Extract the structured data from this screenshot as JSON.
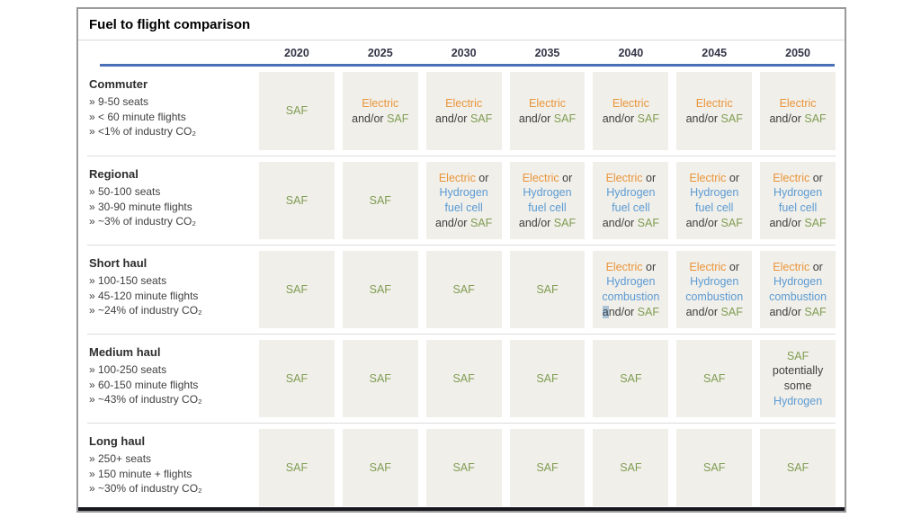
{
  "title": "Fuel to flight comparison",
  "columns": [
    "2020",
    "2025",
    "2030",
    "2035",
    "2040",
    "2045",
    "2050"
  ],
  "colors": {
    "saf": "#7f9d54",
    "electric": "#e9953b",
    "hydrogen": "#5b9bd5",
    "plain_text": "#3f3f3f",
    "cell_background": "#f1efe9",
    "header_underline": "#4a6fb9",
    "bottom_bar": "#17171f"
  },
  "rows": [
    {
      "id": "commuter",
      "category": "Commuter",
      "bullets": [
        "» 9-50 seats",
        "» < 60 minute flights",
        "» <1% of industry CO₂"
      ],
      "cells": [
        [
          [
            {
              "t": "SAF",
              "c": "saf"
            }
          ]
        ],
        [
          [
            {
              "t": "Electric",
              "c": "electric"
            }
          ],
          [
            {
              "t": "and/or ",
              "c": "plain"
            },
            {
              "t": "SAF",
              "c": "saf"
            }
          ]
        ],
        [
          [
            {
              "t": "Electric",
              "c": "electric"
            }
          ],
          [
            {
              "t": "and/or ",
              "c": "plain"
            },
            {
              "t": "SAF",
              "c": "saf"
            }
          ]
        ],
        [
          [
            {
              "t": "Electric",
              "c": "electric"
            }
          ],
          [
            {
              "t": "and/or ",
              "c": "plain"
            },
            {
              "t": "SAF",
              "c": "saf"
            }
          ]
        ],
        [
          [
            {
              "t": "Electric",
              "c": "electric"
            }
          ],
          [
            {
              "t": "and/or ",
              "c": "plain"
            },
            {
              "t": "SAF",
              "c": "saf"
            }
          ]
        ],
        [
          [
            {
              "t": "Electric",
              "c": "electric"
            }
          ],
          [
            {
              "t": "and/or ",
              "c": "plain"
            },
            {
              "t": "SAF",
              "c": "saf"
            }
          ]
        ],
        [
          [
            {
              "t": "Electric",
              "c": "electric"
            }
          ],
          [
            {
              "t": "and/or ",
              "c": "plain"
            },
            {
              "t": "SAF",
              "c": "saf"
            }
          ]
        ]
      ]
    },
    {
      "id": "regional",
      "category": "Regional",
      "bullets": [
        "» 50-100 seats",
        "» 30-90 minute flights",
        "» ~3% of industry CO₂"
      ],
      "cells": [
        [
          [
            {
              "t": "SAF",
              "c": "saf"
            }
          ]
        ],
        [
          [
            {
              "t": "SAF",
              "c": "saf"
            }
          ]
        ],
        [
          [
            {
              "t": "Electric",
              "c": "electric"
            },
            {
              "t": " or",
              "c": "plain"
            }
          ],
          [
            {
              "t": "Hydrogen",
              "c": "hydrogen"
            }
          ],
          [
            {
              "t": "fuel cell",
              "c": "hydrogen"
            }
          ],
          [
            {
              "t": "and/or ",
              "c": "plain"
            },
            {
              "t": "SAF",
              "c": "saf"
            }
          ]
        ],
        [
          [
            {
              "t": "Electric",
              "c": "electric"
            },
            {
              "t": " or",
              "c": "plain"
            }
          ],
          [
            {
              "t": "Hydrogen",
              "c": "hydrogen"
            }
          ],
          [
            {
              "t": "fuel cell",
              "c": "hydrogen"
            }
          ],
          [
            {
              "t": "and/or ",
              "c": "plain"
            },
            {
              "t": "SAF",
              "c": "saf"
            }
          ]
        ],
        [
          [
            {
              "t": "Electric",
              "c": "electric"
            },
            {
              "t": " or",
              "c": "plain"
            }
          ],
          [
            {
              "t": "Hydrogen",
              "c": "hydrogen"
            }
          ],
          [
            {
              "t": "fuel cell",
              "c": "hydrogen"
            }
          ],
          [
            {
              "t": "and/or ",
              "c": "plain"
            },
            {
              "t": "SAF",
              "c": "saf"
            }
          ]
        ],
        [
          [
            {
              "t": "Electric",
              "c": "electric"
            },
            {
              "t": " or",
              "c": "plain"
            }
          ],
          [
            {
              "t": "Hydrogen",
              "c": "hydrogen"
            }
          ],
          [
            {
              "t": "fuel cell",
              "c": "hydrogen"
            }
          ],
          [
            {
              "t": "and/or ",
              "c": "plain"
            },
            {
              "t": "SAF",
              "c": "saf"
            }
          ]
        ],
        [
          [
            {
              "t": "Electric",
              "c": "electric"
            },
            {
              "t": " or",
              "c": "plain"
            }
          ],
          [
            {
              "t": "Hydrogen",
              "c": "hydrogen"
            }
          ],
          [
            {
              "t": "fuel cell",
              "c": "hydrogen"
            }
          ],
          [
            {
              "t": "and/or ",
              "c": "plain"
            },
            {
              "t": "SAF",
              "c": "saf"
            }
          ]
        ]
      ]
    },
    {
      "id": "short-haul",
      "category": "Short haul",
      "bullets": [
        "» 100-150 seats",
        "» 45-120 minute flights",
        "» ~24% of industry CO₂"
      ],
      "cells": [
        [
          [
            {
              "t": "SAF",
              "c": "saf"
            }
          ]
        ],
        [
          [
            {
              "t": "SAF",
              "c": "saf"
            }
          ]
        ],
        [
          [
            {
              "t": "SAF",
              "c": "saf"
            }
          ]
        ],
        [
          [
            {
              "t": "SAF",
              "c": "saf"
            }
          ]
        ],
        [
          [
            {
              "t": "Electric",
              "c": "electric"
            },
            {
              "t": " or",
              "c": "plain"
            }
          ],
          [
            {
              "t": "Hydrogen",
              "c": "hydrogen"
            }
          ],
          [
            {
              "t": "combustion",
              "c": "hydrogen"
            }
          ],
          [
            {
              "t": "a",
              "c": "plain",
              "hl": true
            },
            {
              "t": "nd/or ",
              "c": "plain"
            },
            {
              "t": "SAF",
              "c": "saf"
            }
          ]
        ],
        [
          [
            {
              "t": "Electric",
              "c": "electric"
            },
            {
              "t": " or",
              "c": "plain"
            }
          ],
          [
            {
              "t": "Hydrogen",
              "c": "hydrogen"
            }
          ],
          [
            {
              "t": "combustion",
              "c": "hydrogen"
            }
          ],
          [
            {
              "t": "and/or ",
              "c": "plain"
            },
            {
              "t": "SAF",
              "c": "saf"
            }
          ]
        ],
        [
          [
            {
              "t": "Electric",
              "c": "electric"
            },
            {
              "t": " or",
              "c": "plain"
            }
          ],
          [
            {
              "t": "Hydrogen",
              "c": "hydrogen"
            }
          ],
          [
            {
              "t": "combustion",
              "c": "hydrogen"
            }
          ],
          [
            {
              "t": "and/or ",
              "c": "plain"
            },
            {
              "t": "SAF",
              "c": "saf"
            }
          ]
        ]
      ]
    },
    {
      "id": "medium-haul",
      "category": "Medium haul",
      "bullets": [
        "» 100-250 seats",
        "» 60-150 minute flights",
        "» ~43% of industry CO₂"
      ],
      "cells": [
        [
          [
            {
              "t": "SAF",
              "c": "saf"
            }
          ]
        ],
        [
          [
            {
              "t": "SAF",
              "c": "saf"
            }
          ]
        ],
        [
          [
            {
              "t": "SAF",
              "c": "saf"
            }
          ]
        ],
        [
          [
            {
              "t": "SAF",
              "c": "saf"
            }
          ]
        ],
        [
          [
            {
              "t": "SAF",
              "c": "saf"
            }
          ]
        ],
        [
          [
            {
              "t": "SAF",
              "c": "saf"
            }
          ]
        ],
        [
          [
            {
              "t": "SAF",
              "c": "saf"
            }
          ],
          [
            {
              "t": "potentially",
              "c": "plain"
            }
          ],
          [
            {
              "t": "some",
              "c": "plain"
            }
          ],
          [
            {
              "t": "Hydrogen",
              "c": "hydrogen"
            }
          ]
        ]
      ]
    },
    {
      "id": "long-haul",
      "category": "Long haul",
      "bullets": [
        "» 250+ seats",
        "» 150 minute + flights",
        "» ~30% of industry CO₂"
      ],
      "cells": [
        [
          [
            {
              "t": "SAF",
              "c": "saf"
            }
          ]
        ],
        [
          [
            {
              "t": "SAF",
              "c": "saf"
            }
          ]
        ],
        [
          [
            {
              "t": "SAF",
              "c": "saf"
            }
          ]
        ],
        [
          [
            {
              "t": "SAF",
              "c": "saf"
            }
          ]
        ],
        [
          [
            {
              "t": "SAF",
              "c": "saf"
            }
          ]
        ],
        [
          [
            {
              "t": "SAF",
              "c": "saf"
            }
          ]
        ],
        [
          [
            {
              "t": "SAF",
              "c": "saf"
            }
          ]
        ]
      ]
    }
  ]
}
